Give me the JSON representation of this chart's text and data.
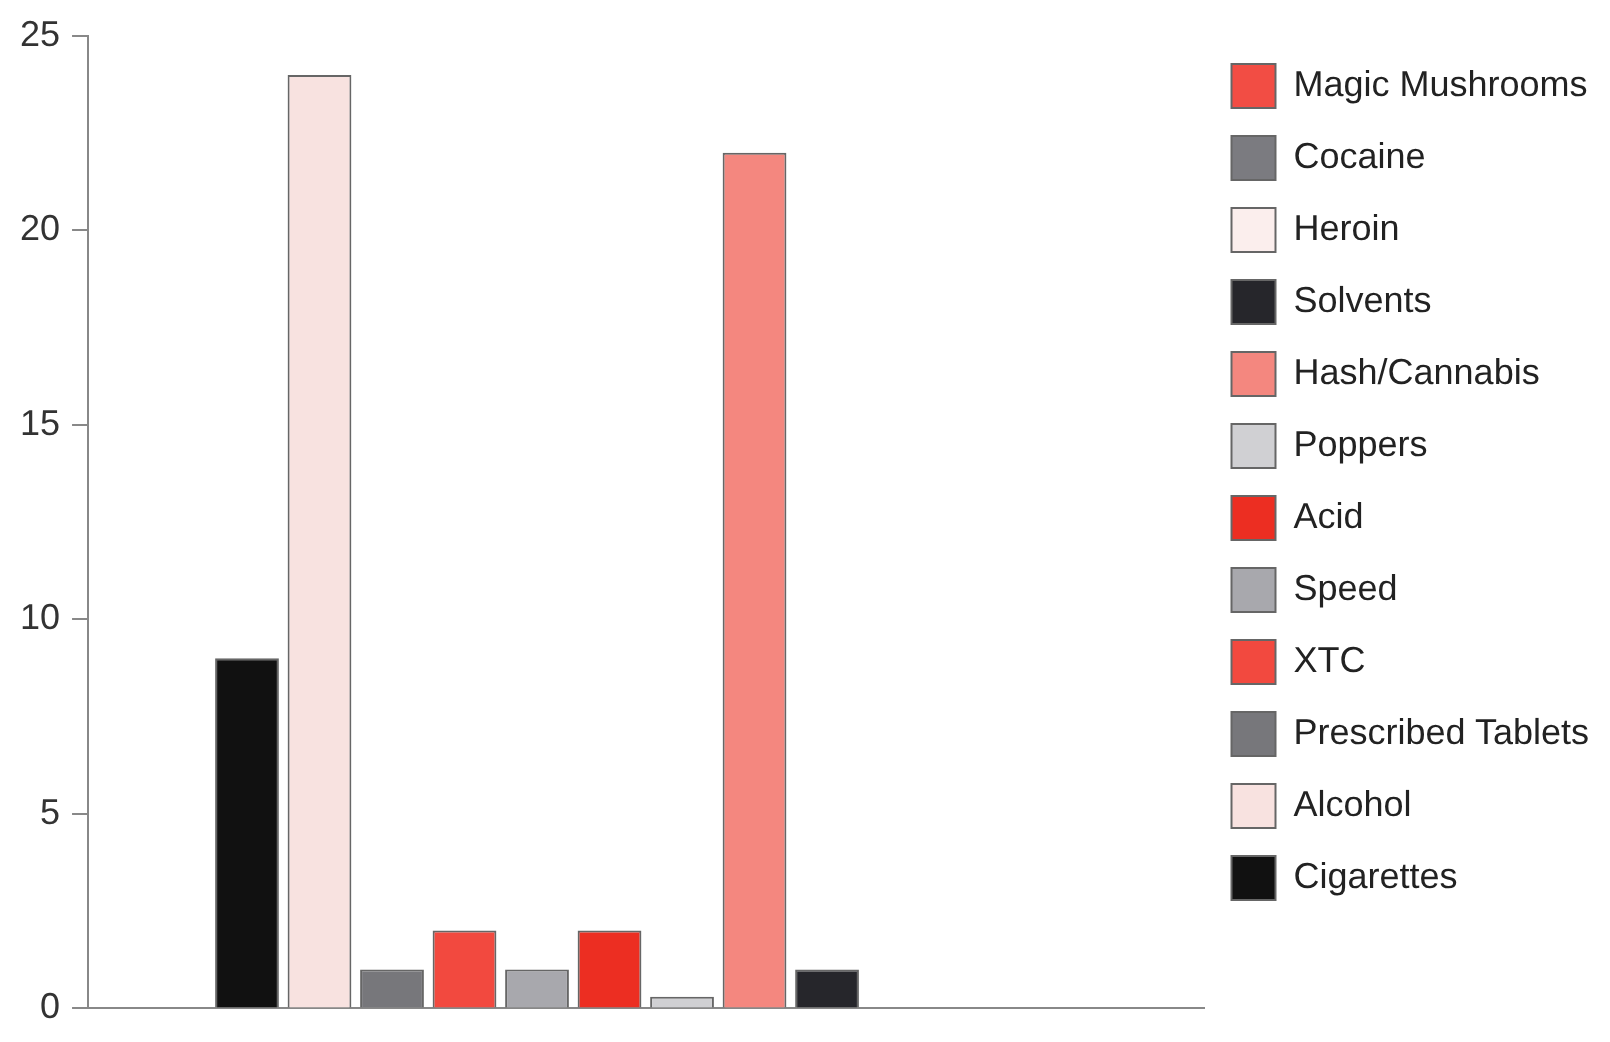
{
  "chart_data": {
    "type": "bar",
    "categories": [
      null
    ],
    "series": [
      {
        "name": "Cigarettes",
        "color": "#111111",
        "values": [
          9
        ]
      },
      {
        "name": "Alcohol",
        "color": "#f8e2e0",
        "values": [
          24
        ]
      },
      {
        "name": "Prescribed Tablets",
        "color": "#77777b",
        "values": [
          1
        ]
      },
      {
        "name": "XTC",
        "color": "#f2493f",
        "values": [
          2
        ]
      },
      {
        "name": "Speed",
        "color": "#a8a8ad",
        "values": [
          1
        ]
      },
      {
        "name": "Acid",
        "color": "#ec2e22",
        "values": [
          2
        ]
      },
      {
        "name": "Poppers",
        "color": "#d0d0d3",
        "values": [
          0.3
        ]
      },
      {
        "name": "Hash/Cannabis",
        "color": "#f4877f",
        "values": [
          22
        ]
      },
      {
        "name": "Solvents",
        "color": "#26262b",
        "values": [
          1
        ]
      },
      {
        "name": "Heroin",
        "color": "#fbeeed",
        "values": [
          0
        ]
      },
      {
        "name": "Cocaine",
        "color": "#7b7b80",
        "values": [
          0
        ]
      },
      {
        "name": "Magic Mushrooms",
        "color": "#f24d44",
        "values": [
          0
        ]
      }
    ],
    "ylim": [
      0,
      25
    ],
    "yticks": [
      0,
      5,
      10,
      15,
      20,
      25
    ],
    "grid": false,
    "legend": "right",
    "tick_labels": "y"
  }
}
